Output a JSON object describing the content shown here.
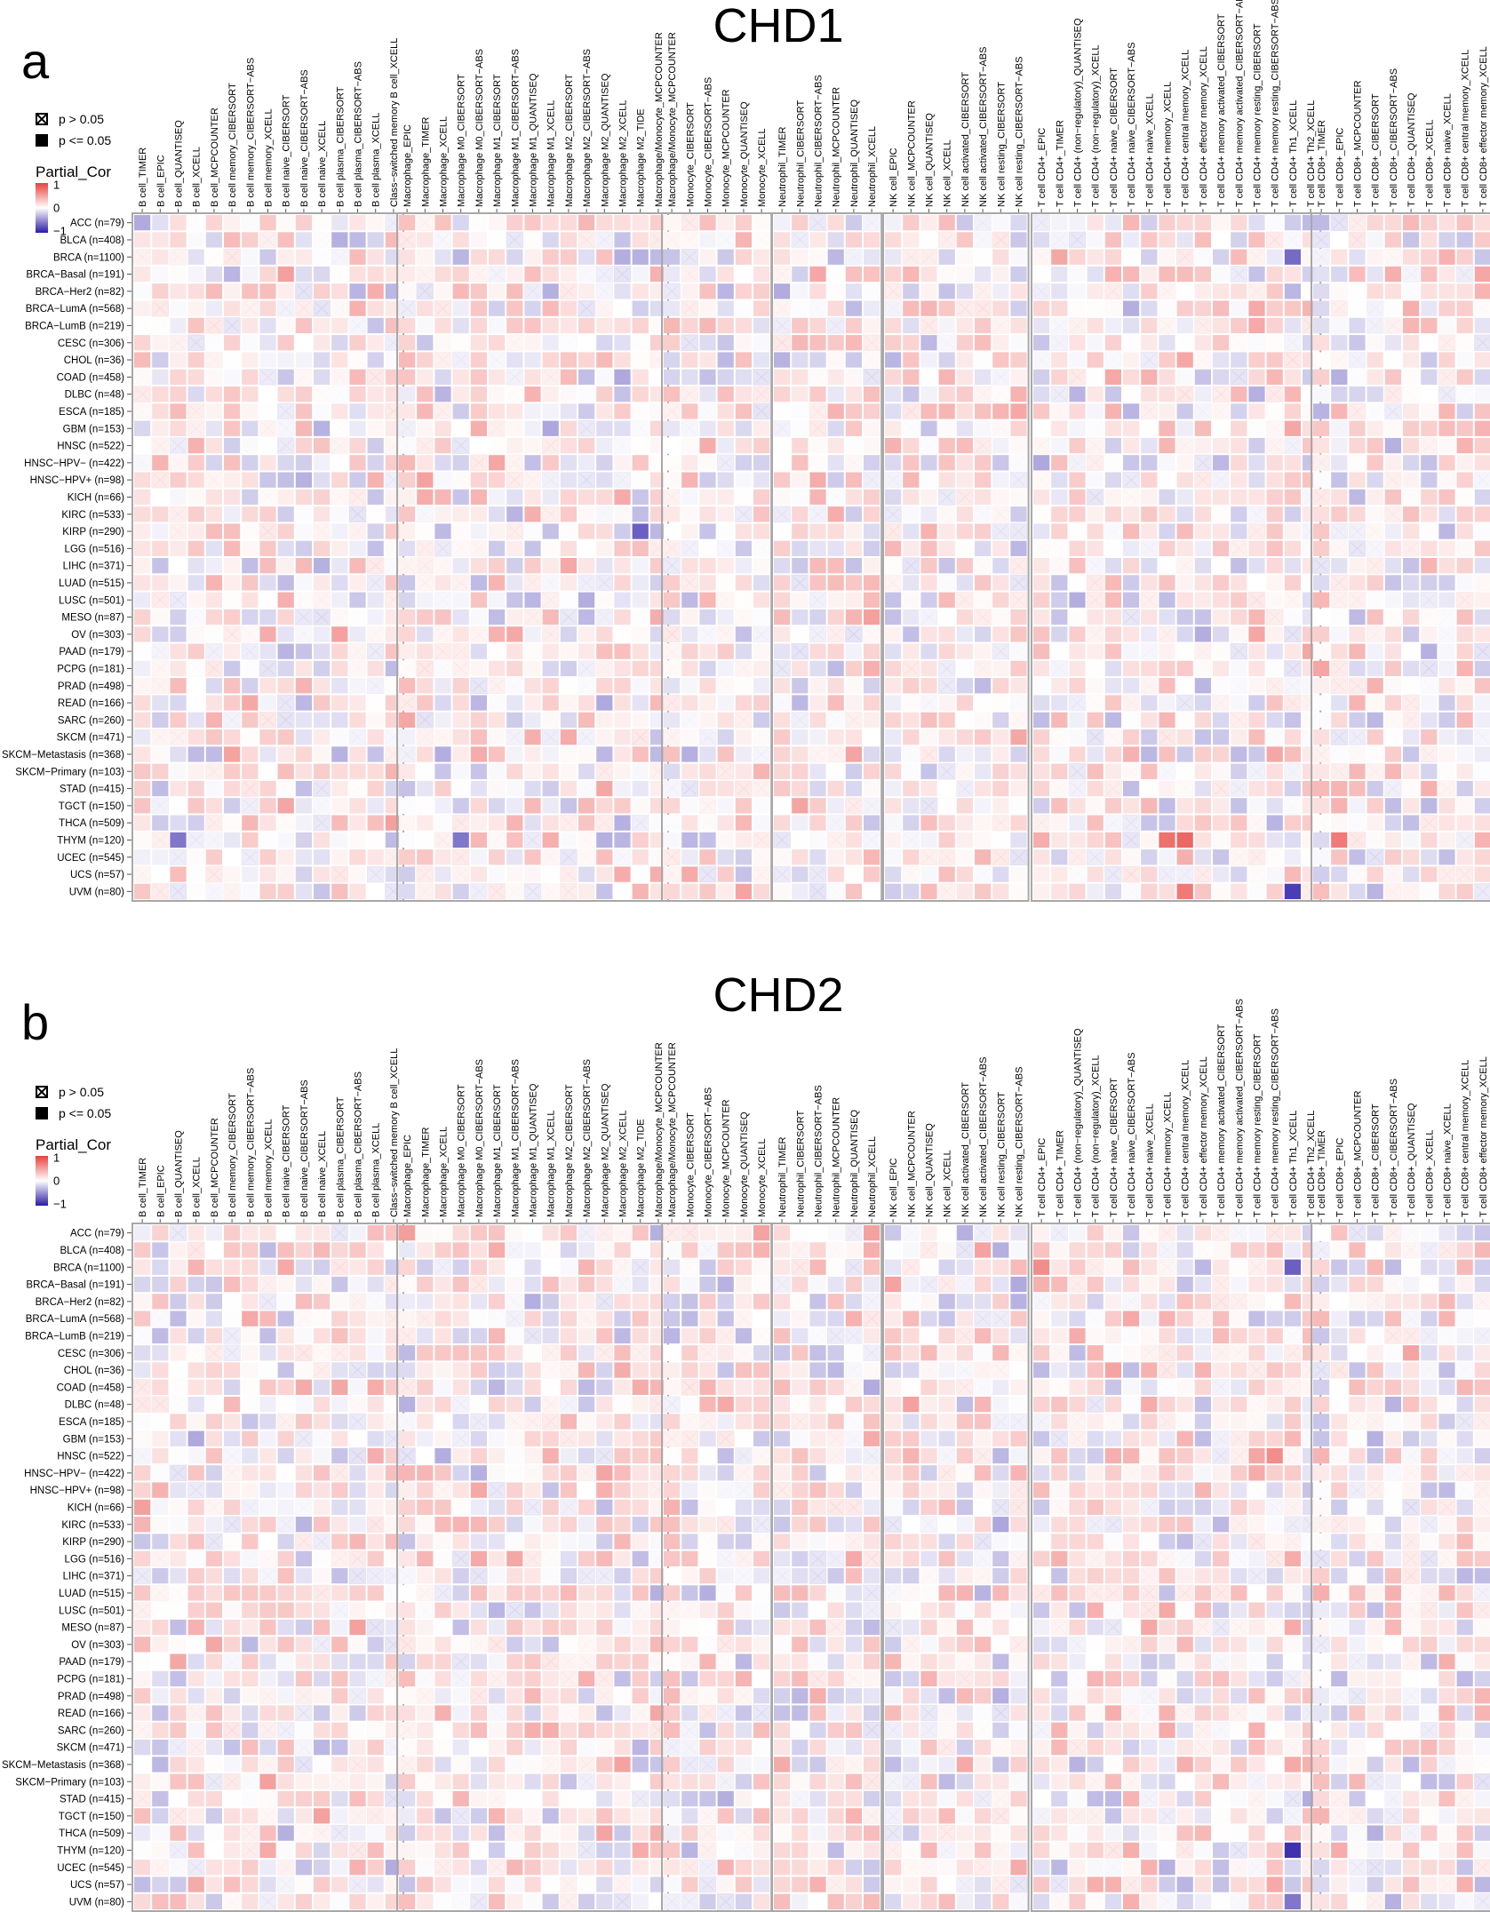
{
  "legend": {
    "ns_label": "p > 0.05",
    "sig_label": "p <= 0.05",
    "scale_title": "Partial_Cor",
    "scale_ticks": [
      "1",
      "0",
      "−1"
    ],
    "colors": {
      "high": "#e8413d",
      "mid": "#ffffff",
      "low": "#2b1ba6"
    }
  },
  "cancers": [
    "ACC (n=79)",
    "BLCA (n=408)",
    "BRCA (n=1100)",
    "BRCA−Basal (n=191)",
    "BRCA−Her2 (n=82)",
    "BRCA−LumA (n=568)",
    "BRCA−LumB (n=219)",
    "CESC (n=306)",
    "CHOL (n=36)",
    "COAD (n=458)",
    "DLBC (n=48)",
    "ESCA (n=185)",
    "GBM (n=153)",
    "HNSC (n=522)",
    "HNSC−HPV− (n=422)",
    "HNSC−HPV+ (n=98)",
    "KICH (n=66)",
    "KIRC (n=533)",
    "KIRP (n=290)",
    "LGG (n=516)",
    "LIHC (n=371)",
    "LUAD (n=515)",
    "LUSC (n=501)",
    "MESO (n=87)",
    "OV (n=303)",
    "PAAD (n=179)",
    "PCPG (n=181)",
    "PRAD (n=498)",
    "READ (n=166)",
    "SARC (n=260)",
    "SKCM (n=471)",
    "SKCM−Metastasis (n=368)",
    "SKCM−Primary (n=103)",
    "STAD (n=415)",
    "TGCT (n=150)",
    "THCA (n=509)",
    "THYM (n=120)",
    "UCEC (n=545)",
    "UCS (n=57)",
    "UVM (n=80)"
  ],
  "groups": [
    {
      "name": "B cell",
      "cells": [
        "B cell_TIMER",
        "B cell_EPIC",
        "B cell_QUANTISEQ",
        "B cell_XCELL",
        "B cell_MCPCOUNTER",
        "B cell memory_CIBERSORT",
        "B cell memory_CIBERSORT−ABS",
        "B cell memory_XCELL",
        "B cell naive_CIBERSORT",
        "B cell naive_CIBERSORT−ABS",
        "B cell naive_XCELL",
        "B cell plasma_CIBERSORT",
        "B cell plasma_CIBERSORT−ABS",
        "B cell plasma_XCELL",
        "Class−switched memory B cell_XCELL"
      ]
    },
    {
      "name": "Macrophage",
      "cells": [
        "Macrophage_EPIC",
        "Macrophage_TIMER",
        "Macrophage_XCELL",
        "Macrophage M0_CIBERSORT",
        "Macrophage M0_CIBERSORT−ABS",
        "Macrophage M1_CIBERSORT",
        "Macrophage M1_CIBERSORT−ABS",
        "Macrophage M1_QUANTISEQ",
        "Macrophage M1_XCELL",
        "Macrophage M2_CIBERSORT",
        "Macrophage M2_CIBERSORT−ABS",
        "Macrophage M2_QUANTISEQ",
        "Macrophage M2_XCELL",
        "Macrophage M2_TIDE",
        "Macrophage/Monocyte_MCPCOUNTER"
      ]
    },
    {
      "name": "Monocyte",
      "cells": [
        "Macrophage/Monocyte_MCPCOUNTER",
        "Monocyte_CIBERSORT",
        "Monocyte_CIBERSORT−ABS",
        "Monocyte_MCPCOUNTER",
        "Monocyte_QUANTISEQ",
        "Monocyte_XCELL"
      ]
    },
    {
      "name": "Neutrophil",
      "cells": [
        "Neutrophil_TIMER",
        "Neutrophil_CIBERSORT",
        "Neutrophil_CIBERSORT−ABS",
        "Neutrophil_MCPCOUNTER",
        "Neutrophil_QUANTISEQ",
        "Neutrophil_XCELL"
      ]
    },
    {
      "name": "NK cell",
      "cells": [
        "NK cell_EPIC",
        "NK cell_MCPCOUNTER",
        "NK cell_QUANTISEQ",
        "NK cell_XCELL",
        "NK cell activated_CIBERSORT",
        "NK cell activated_CIBERSORT−ABS",
        "NK cell resting_CIBERSORT",
        "NK cell resting_CIBERSORT−ABS"
      ]
    },
    {
      "name": "T cell CD4+",
      "cells": [
        "T cell CD4+_EPIC",
        "T cell CD4+_TIMER",
        "T cell CD4+ (non−regulatory)_QUANTISEQ",
        "T cell CD4+ (non−regulatory)_XCELL",
        "T cell CD4+ naive_CIBERSORT",
        "T cell CD4+ naive_CIBERSORT−ABS",
        "T cell CD4+ naive_XCELL",
        "T cell CD4+ memory_XCELL",
        "T cell CD4+ central memory_XCELL",
        "T cell CD4+ effector memory_XCELL",
        "T cell CD4+ memory activated_CIBERSORT",
        "T cell CD4+ memory activated_CIBERSORT−ABS",
        "T cell CD4+ memory resting_CIBERSORT",
        "T cell CD4+ memory resting_CIBERSORT−ABS",
        "T cell CD4+ Th1_XCELL",
        "T cell CD4+ Th2_XCELL"
      ]
    },
    {
      "name": "T cell CD8+",
      "cells": [
        "T cell CD8+_TIMER",
        "T cell CD8+_EPIC",
        "T cell CD8+_MCPCOUNTER",
        "T cell CD8+_CIBERSORT",
        "T cell CD8+_CIBERSORT−ABS",
        "T cell CD8+_QUANTISEQ",
        "T cell CD8+_XCELL",
        "T cell CD8+ naive_XCELL",
        "T cell CD8+ central memory_XCELL",
        "T cell CD8+ effector memory_XCELL"
      ]
    }
  ],
  "chart_data": [
    {
      "type": "heatmap",
      "panel": "a",
      "title": "CHD1",
      "value_name": "Partial_Cor",
      "value_range": [
        -1,
        1
      ],
      "rows_ref": "cancers",
      "columns_ref": "groups",
      "marker_legend": {
        "crossed_square": "p > 0.05",
        "filled_square": "p <= 0.05"
      },
      "values_note": "values per cell approximated from color",
      "highlights": [
        {
          "row": "THYM (n=120)",
          "column": "T cell CD4+ central memory_XCELL",
          "value": 0.8
        },
        {
          "row": "THYM (n=120)",
          "column": "T cell CD4+ memory_XCELL",
          "value": 0.75
        },
        {
          "row": "THYM (n=120)",
          "column": "Macrophage M0_CIBERSORT",
          "value": -0.6
        },
        {
          "row": "THYM (n=120)",
          "column": "B cell_QUANTISEQ",
          "value": -0.6
        },
        {
          "row": "UVM (n=80)",
          "column": "T cell CD4+ Th1_XCELL",
          "value": -0.85
        },
        {
          "row": "UVM (n=80)",
          "column": "T cell CD4+ central memory_XCELL",
          "value": 0.7
        },
        {
          "row": "KIRP (n=290)",
          "column": "Macrophage M2_TIDE",
          "value": -0.7
        },
        {
          "row": "BRCA (n=1100)",
          "column": "T cell CD4+ Th1_XCELL",
          "value": -0.65
        },
        {
          "row": "THYM (n=120)",
          "column": "T cell CD8+_EPIC",
          "value": 0.7
        }
      ]
    },
    {
      "type": "heatmap",
      "panel": "b",
      "title": "CHD2",
      "value_name": "Partial_Cor",
      "value_range": [
        -1,
        1
      ],
      "rows_ref": "cancers",
      "columns_ref": "groups",
      "marker_legend": {
        "crossed_square": "p > 0.05",
        "filled_square": "p <= 0.05"
      },
      "values_note": "values per cell approximated from color",
      "highlights": [
        {
          "row": "THYM (n=120)",
          "column": "T cell CD4+ Th1_XCELL",
          "value": -0.9
        },
        {
          "row": "BRCA (n=1100)",
          "column": "T cell CD4+ Th1_XCELL",
          "value": -0.7
        },
        {
          "row": "BRCA (n=1100)",
          "column": "T cell CD4+_EPIC",
          "value": 0.6
        },
        {
          "row": "HNSC (n=522)",
          "column": "T cell CD4+ memory resting_CIBERSORT−ABS",
          "value": 0.6
        },
        {
          "row": "KICH (n=66)",
          "column": "B cell_TIMER",
          "value": 0.5
        },
        {
          "row": "UVM (n=80)",
          "column": "T cell CD4+ Th1_XCELL",
          "value": -0.6
        }
      ]
    }
  ]
}
